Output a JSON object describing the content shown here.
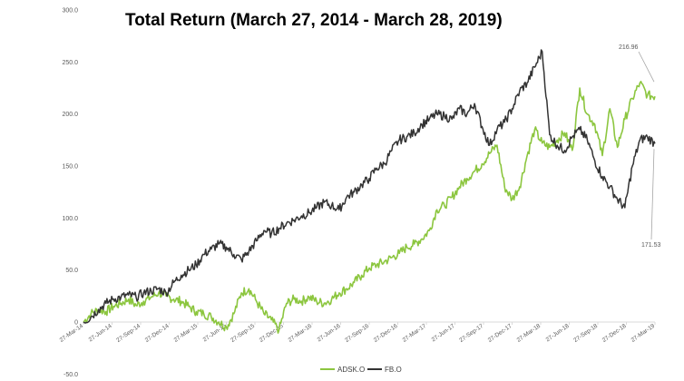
{
  "chart_data": {
    "type": "line",
    "title": "Total Return (March 27, 2014 - March 28, 2019)",
    "xlabel": "",
    "ylabel": "",
    "ylim": [
      -50,
      300
    ],
    "y_ticks": [
      "-50.0",
      "0",
      "50.0",
      "100.0",
      "150.0",
      "200.0",
      "250.0",
      "300.0"
    ],
    "x_ticks": [
      "27-Mar-14",
      "27-Jun-14",
      "27-Sep-14",
      "27-Dec-14",
      "27-Mar-15",
      "27-Jun-15",
      "27-Sep-15",
      "27-Dec-15",
      "27-Mar-16",
      "27-Jun-16",
      "27-Sep-16",
      "27-Dec-16",
      "27-Mar-17",
      "27-Jun-17",
      "27-Sep-17",
      "27-Dec-17",
      "27-Mar-18",
      "27-Jun-18",
      "27-Sep-18",
      "27-Dec-18",
      "27-Mar-19"
    ],
    "grid": false,
    "legend_position": "bottom",
    "series": [
      {
        "name": "ADSK.O",
        "color": "#8cc63f",
        "values": [
          0,
          8,
          12,
          10,
          15,
          18,
          22,
          16,
          20,
          24,
          28,
          25,
          22,
          20,
          15,
          10,
          8,
          5,
          0,
          -5,
          8,
          28,
          32,
          20,
          8,
          2,
          -8,
          18,
          22,
          20,
          24,
          20,
          18,
          22,
          28,
          32,
          38,
          45,
          52,
          55,
          58,
          62,
          66,
          72,
          75,
          80,
          88,
          108,
          112,
          120,
          130,
          138,
          145,
          152,
          162,
          170,
          130,
          118,
          130,
          160,
          185,
          172,
          168,
          175,
          182,
          165,
          225,
          200,
          190,
          160,
          205,
          168,
          195,
          215,
          230,
          218,
          216.96
        ]
      },
      {
        "name": "FB.O",
        "color": "#333333",
        "values": [
          0,
          5,
          12,
          18,
          22,
          24,
          26,
          24,
          28,
          30,
          32,
          28,
          38,
          45,
          50,
          55,
          65,
          70,
          75,
          72,
          65,
          60,
          68,
          78,
          88,
          85,
          90,
          95,
          98,
          102,
          105,
          110,
          115,
          112,
          108,
          120,
          125,
          132,
          138,
          148,
          152,
          165,
          175,
          178,
          182,
          190,
          195,
          200,
          198,
          195,
          205,
          200,
          210,
          188,
          170,
          185,
          192,
          205,
          222,
          230,
          245,
          260,
          180,
          170,
          165,
          178,
          185,
          175,
          155,
          140,
          130,
          118,
          110,
          150,
          175,
          178,
          171.53
        ]
      }
    ],
    "annotations": {
      "adsk_end_label": "216.96",
      "fb_end_label": "171.53"
    }
  }
}
